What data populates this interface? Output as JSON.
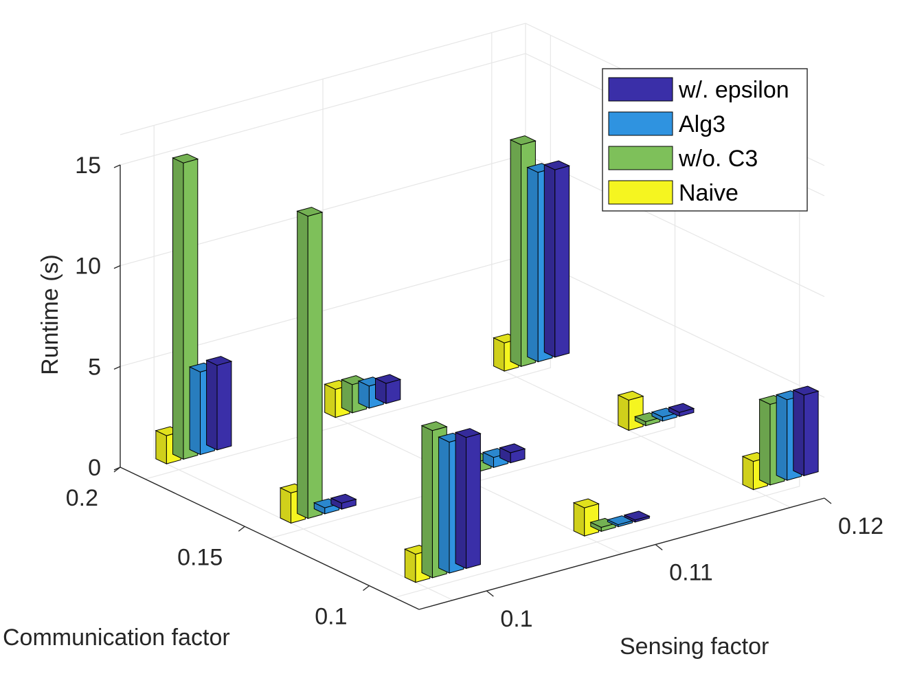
{
  "chart_data": {
    "type": "bar3d",
    "xlabel": "Sensing factor",
    "ylabel": "Communication factor",
    "zlabel": "Runtime (s)",
    "x_ticks": [
      "0.1",
      "0.11",
      "0.12"
    ],
    "y_ticks": [
      "0.2",
      "0.15",
      "0.1"
    ],
    "z_ticks": [
      "0",
      "5",
      "10",
      "15"
    ],
    "zlim": [
      0,
      15
    ],
    "grid": true,
    "legend_position": "top-right",
    "series": [
      {
        "name": "w/. epsilon",
        "color": "#3a2fa8",
        "values": [
          [
            4.2,
            1.0,
            9.3
          ],
          [
            0.3,
            0.5,
            0.2
          ],
          [
            6.5,
            0.1,
            4.0
          ]
        ]
      },
      {
        "name": "Alg3",
        "color": "#2f93e0",
        "values": [
          [
            4.1,
            1.1,
            9.4
          ],
          [
            0.3,
            0.5,
            0.2
          ],
          [
            6.5,
            0.1,
            4.0
          ]
        ]
      },
      {
        "name": "w/o. C3",
        "color": "#7ec05a",
        "values": [
          [
            14.7,
            1.4,
            11.0
          ],
          [
            15.0,
            0.5,
            0.2
          ],
          [
            7.3,
            0.2,
            4.0
          ]
        ]
      },
      {
        "name": "Naive",
        "color": "#f5f520",
        "values": [
          [
            1.4,
            1.4,
            1.4
          ],
          [
            1.5,
            1.4,
            1.5
          ],
          [
            1.4,
            1.4,
            1.4
          ]
        ]
      }
    ],
    "row_order": [
      "0.2",
      "0.15",
      "0.1"
    ],
    "column_order": [
      "0.1",
      "0.11",
      "0.12"
    ]
  }
}
